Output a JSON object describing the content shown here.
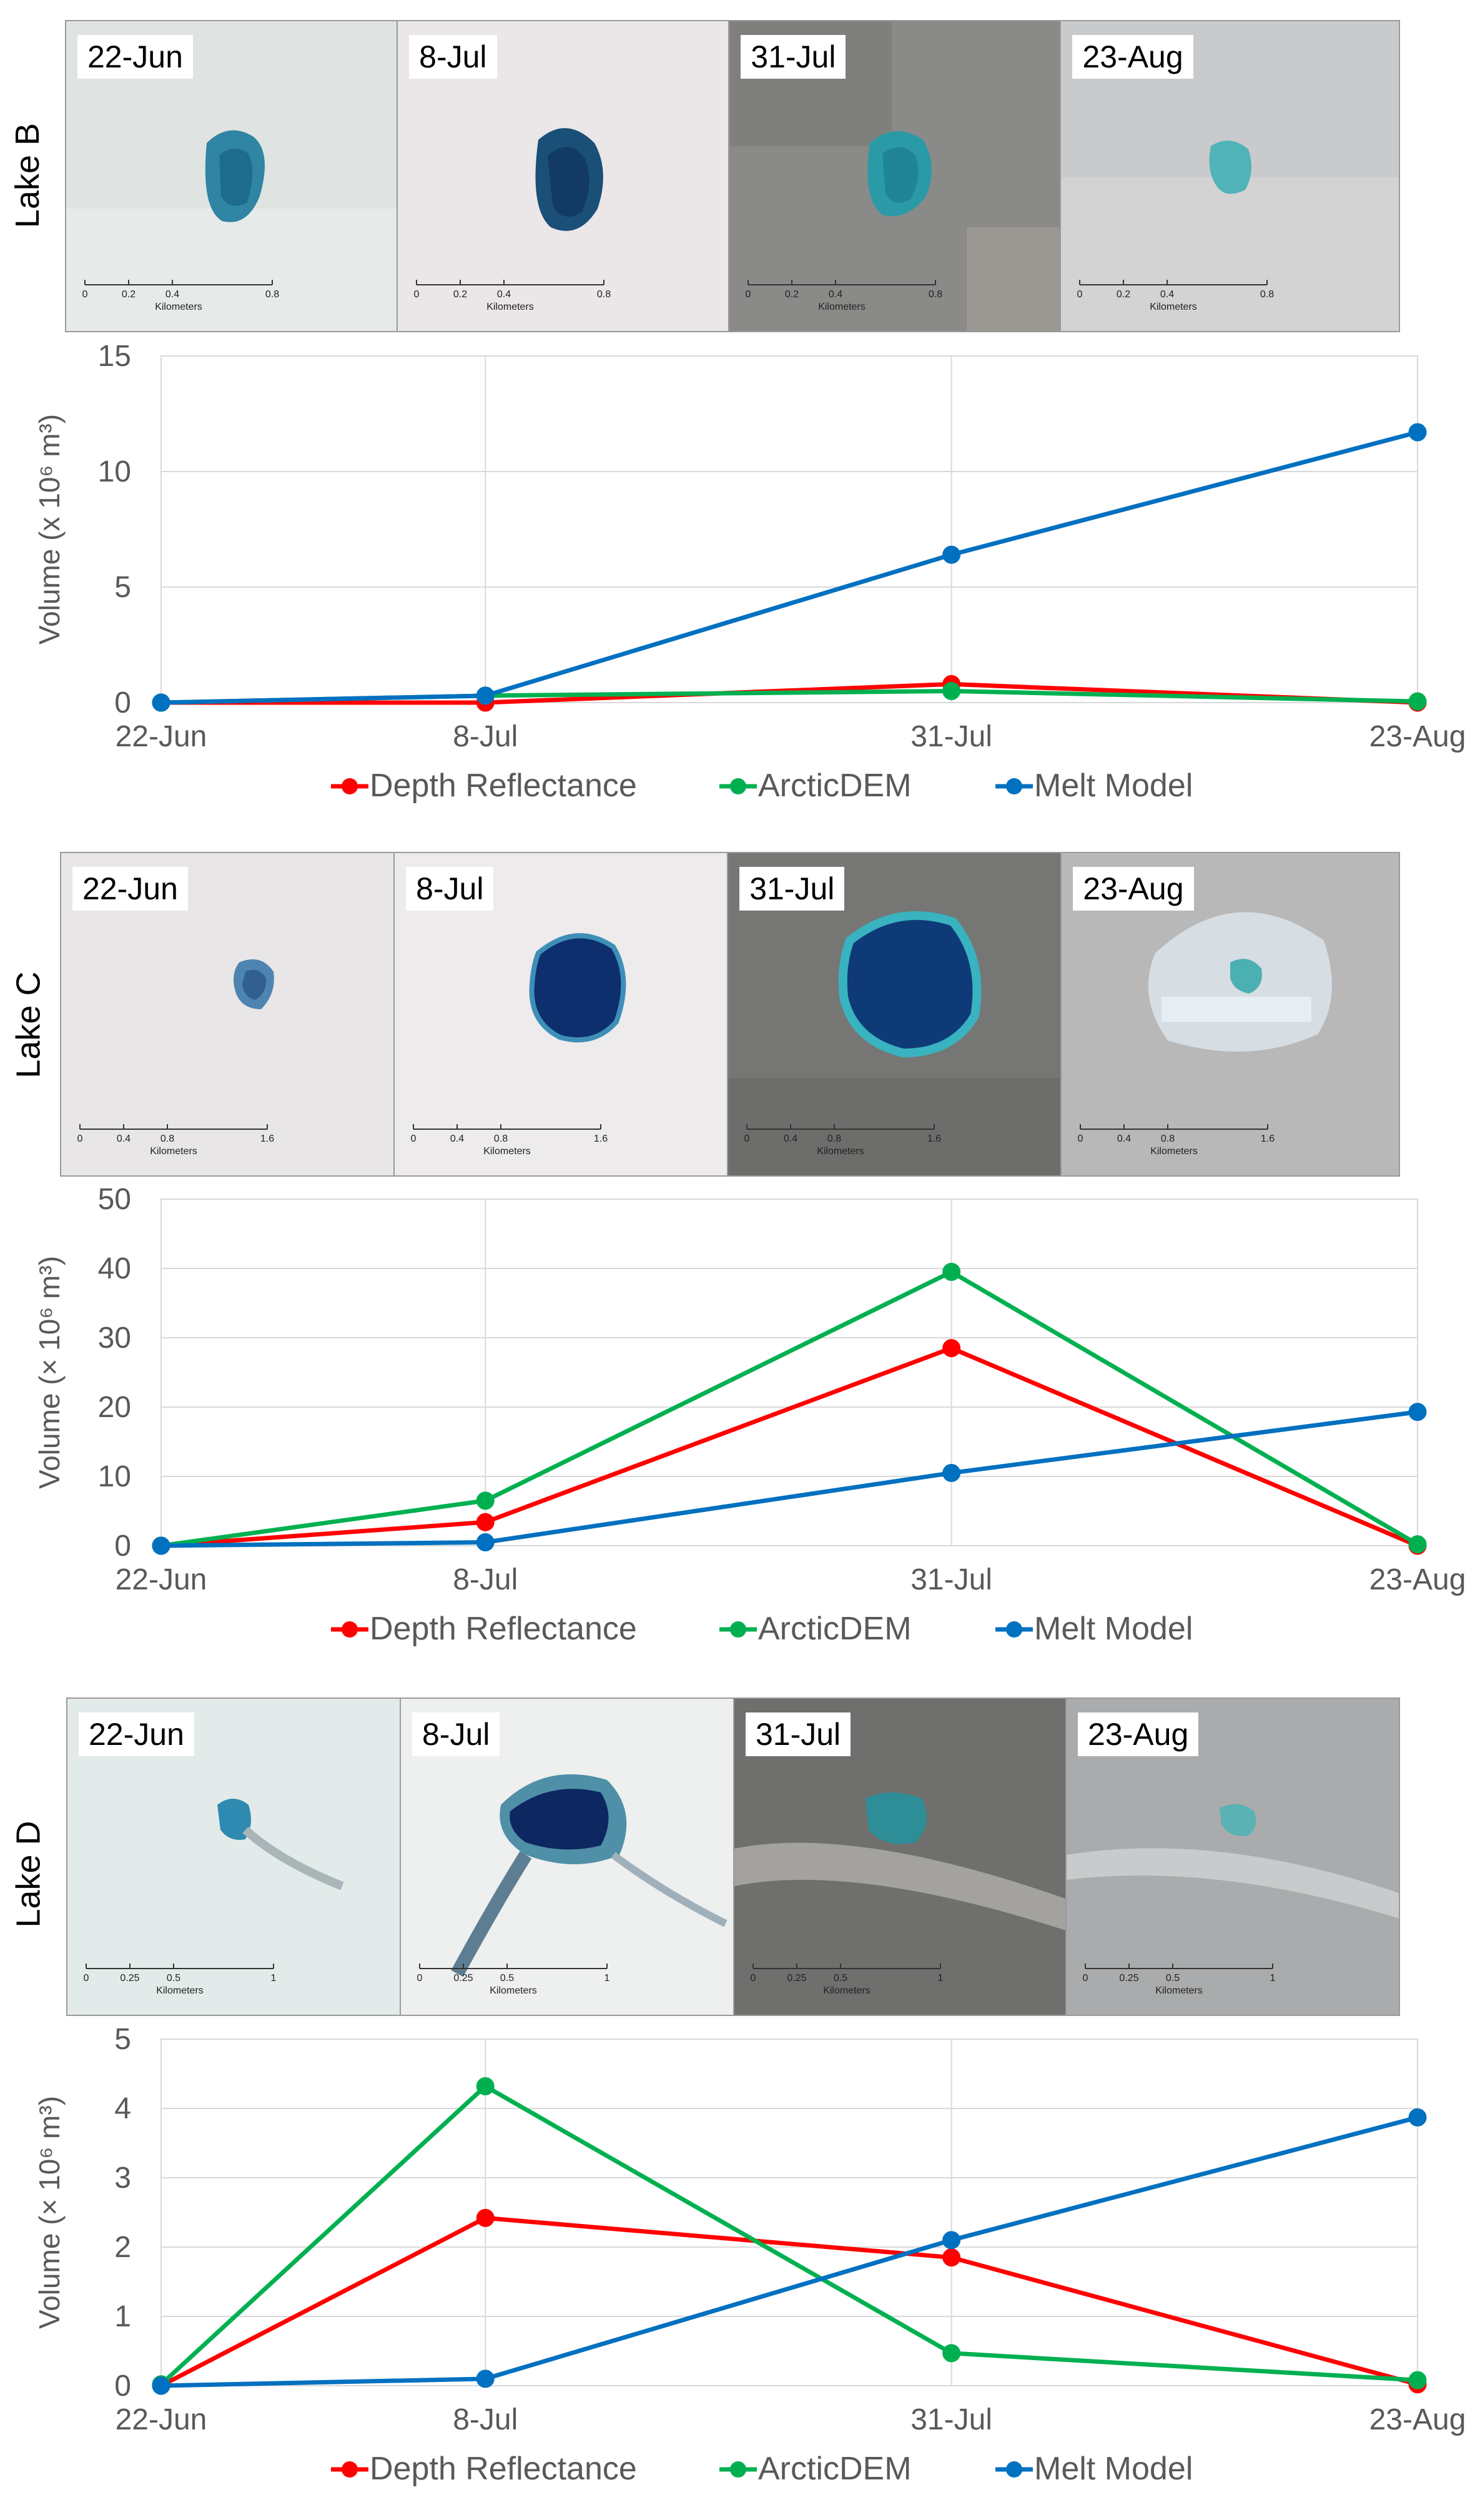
{
  "colors": {
    "depth": "#ff0000",
    "dem": "#00b050",
    "melt": "#0070c0"
  },
  "legend_labels": [
    "Depth Reflectance",
    "ArcticDEM",
    "Melt Model"
  ],
  "chart_data": [
    {
      "type": "line",
      "panel": "Lake B",
      "categories": [
        "22-Jun",
        "8-Jul",
        "31-Jul",
        "23-Aug"
      ],
      "x": [
        0,
        16,
        39,
        62
      ],
      "ylabel": "Volume (x 10⁶ m³)",
      "ylim": [
        0,
        15
      ],
      "yticks": [
        0,
        5,
        10,
        15
      ],
      "series": [
        {
          "name": "Depth Reflectance",
          "values": [
            0,
            0,
            0.8,
            0
          ]
        },
        {
          "name": "ArcticDEM",
          "values": [
            0,
            0.3,
            0.5,
            0.05
          ]
        },
        {
          "name": "Melt Model",
          "values": [
            0,
            0.3,
            6.4,
            11.7
          ]
        }
      ]
    },
    {
      "type": "line",
      "panel": "Lake C",
      "categories": [
        "22-Jun",
        "8-Jul",
        "31-Jul",
        "23-Aug"
      ],
      "x": [
        0,
        16,
        39,
        62
      ],
      "ylabel": "Volume (× 10⁶ m³)",
      "ylim": [
        0,
        50
      ],
      "yticks": [
        0,
        10,
        20,
        30,
        40,
        50
      ],
      "series": [
        {
          "name": "Depth Reflectance",
          "values": [
            0,
            3.4,
            28.5,
            0
          ]
        },
        {
          "name": "ArcticDEM",
          "values": [
            0,
            6.5,
            39.5,
            0.2
          ]
        },
        {
          "name": "Melt Model",
          "values": [
            0,
            0.5,
            10.5,
            19.3
          ]
        }
      ]
    },
    {
      "type": "line",
      "panel": "Lake D",
      "categories": [
        "22-Jun",
        "8-Jul",
        "31-Jul",
        "23-Aug"
      ],
      "x": [
        0,
        16,
        39,
        62
      ],
      "ylabel": "Volume (× 10⁶ m³)",
      "ylim": [
        0,
        5
      ],
      "yticks": [
        0,
        1,
        2,
        3,
        4,
        5
      ],
      "series": [
        {
          "name": "Depth Reflectance",
          "values": [
            0,
            2.42,
            1.85,
            0.02
          ]
        },
        {
          "name": "ArcticDEM",
          "values": [
            0.02,
            4.32,
            0.47,
            0.08
          ]
        },
        {
          "name": "Melt Model",
          "values": [
            0,
            0.1,
            2.1,
            3.87
          ]
        }
      ]
    }
  ],
  "panels": [
    {
      "lake_label": "Lake B",
      "dates": [
        "22-Jun",
        "8-Jul",
        "31-Jul",
        "23-Aug"
      ],
      "scale_ticks": [
        "0",
        "0.2",
        "0.4",
        "0.8"
      ],
      "scale_unit": "Kilometers"
    },
    {
      "lake_label": "Lake C",
      "dates": [
        "22-Jun",
        "8-Jul",
        "31-Jul",
        "23-Aug"
      ],
      "scale_ticks": [
        "0",
        "0.4",
        "0.8",
        "1.6"
      ],
      "scale_unit": "Kilometers"
    },
    {
      "lake_label": "Lake D",
      "dates": [
        "22-Jun",
        "8-Jul",
        "31-Jul",
        "23-Aug"
      ],
      "scale_ticks": [
        "0",
        "0.25",
        "0.5",
        "1"
      ],
      "scale_unit": "Kilometers"
    }
  ]
}
